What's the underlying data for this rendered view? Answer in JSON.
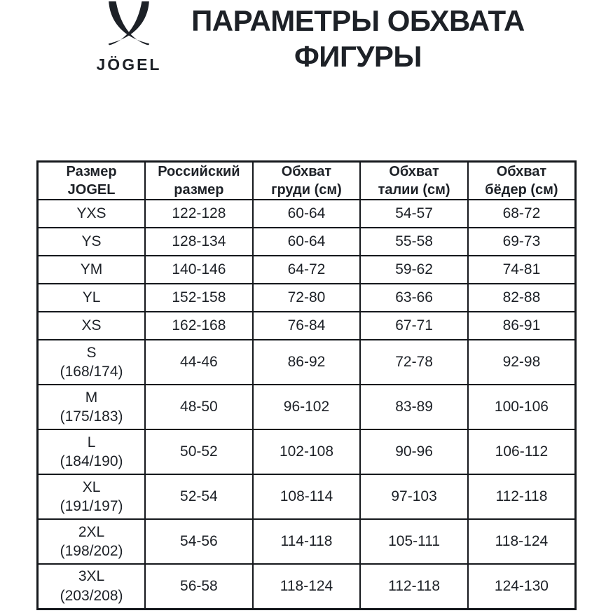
{
  "logo": {
    "brand": "JÖGEL",
    "mark": "jogel-v-horns-mark"
  },
  "title": {
    "line1": "ПАРАМЕТРЫ ОБХВАТА",
    "line2": "ФИГУРЫ"
  },
  "table": {
    "headers": [
      {
        "line1": "Размер",
        "line2": "JOGEL"
      },
      {
        "line1": "Российский",
        "line2": "размер"
      },
      {
        "line1": "Обхват",
        "line2": "груди (см)"
      },
      {
        "line1": "Обхват",
        "line2": "талии (см)"
      },
      {
        "line1": "Обхват",
        "line2": "бёдер (см)"
      }
    ],
    "rows": [
      {
        "jogel_size": "YXS",
        "height_range": "",
        "russian_size": "122-128",
        "chest": "60-64",
        "waist": "54-57",
        "hips": "68-72"
      },
      {
        "jogel_size": "YS",
        "height_range": "",
        "russian_size": "128-134",
        "chest": "60-64",
        "waist": "55-58",
        "hips": "69-73"
      },
      {
        "jogel_size": "YM",
        "height_range": "",
        "russian_size": "140-146",
        "chest": "64-72",
        "waist": "59-62",
        "hips": "74-81"
      },
      {
        "jogel_size": "YL",
        "height_range": "",
        "russian_size": "152-158",
        "chest": "72-80",
        "waist": "63-66",
        "hips": "82-88"
      },
      {
        "jogel_size": "XS",
        "height_range": "",
        "russian_size": "162-168",
        "chest": "76-84",
        "waist": "67-71",
        "hips": "86-91"
      },
      {
        "jogel_size": "S",
        "height_range": "(168/174)",
        "russian_size": "44-46",
        "chest": "86-92",
        "waist": "72-78",
        "hips": "92-98"
      },
      {
        "jogel_size": "M",
        "height_range": "(175/183)",
        "russian_size": "48-50",
        "chest": "96-102",
        "waist": "83-89",
        "hips": "100-106"
      },
      {
        "jogel_size": "L",
        "height_range": "(184/190)",
        "russian_size": "50-52",
        "chest": "102-108",
        "waist": "90-96",
        "hips": "106-112"
      },
      {
        "jogel_size": "XL",
        "height_range": "(191/197)",
        "russian_size": "52-54",
        "chest": "108-114",
        "waist": "97-103",
        "hips": "112-118"
      },
      {
        "jogel_size": "2XL",
        "height_range": "(198/202)",
        "russian_size": "54-56",
        "chest": "114-118",
        "waist": "105-111",
        "hips": "118-124"
      },
      {
        "jogel_size": "3XL",
        "height_range": "(203/208)",
        "russian_size": "56-58",
        "chest": "118-124",
        "waist": "112-118",
        "hips": "124-130"
      }
    ]
  },
  "chart_data": {
    "type": "table",
    "title": "ПАРАМЕТРЫ ОБХВАТА ФИГУРЫ",
    "columns": [
      "Размер JOGEL",
      "Российский размер",
      "Обхват груди (см)",
      "Обхват талии (см)",
      "Обхват бёдер (см)"
    ],
    "rows": [
      [
        "YXS",
        "122-128",
        "60-64",
        "54-57",
        "68-72"
      ],
      [
        "YS",
        "128-134",
        "60-64",
        "55-58",
        "69-73"
      ],
      [
        "YM",
        "140-146",
        "64-72",
        "59-62",
        "74-81"
      ],
      [
        "YL",
        "152-158",
        "72-80",
        "63-66",
        "82-88"
      ],
      [
        "XS",
        "162-168",
        "76-84",
        "67-71",
        "86-91"
      ],
      [
        "S (168/174)",
        "44-46",
        "86-92",
        "72-78",
        "92-98"
      ],
      [
        "M (175/183)",
        "48-50",
        "96-102",
        "83-89",
        "100-106"
      ],
      [
        "L (184/190)",
        "50-52",
        "102-108",
        "90-96",
        "106-112"
      ],
      [
        "XL (191/197)",
        "52-54",
        "108-114",
        "97-103",
        "112-118"
      ],
      [
        "2XL (198/202)",
        "54-56",
        "114-118",
        "105-111",
        "118-124"
      ],
      [
        "3XL (203/208)",
        "56-58",
        "118-124",
        "112-118",
        "124-130"
      ]
    ]
  },
  "colors": {
    "text": "#1d2127",
    "border": "#15181c",
    "background": "#ffffff"
  }
}
